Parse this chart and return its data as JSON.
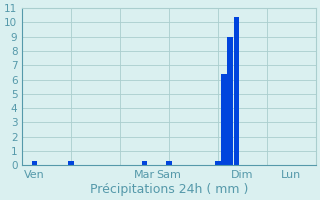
{
  "n_slots": 48,
  "bar_values": [
    0,
    0,
    0.3,
    0,
    0,
    0,
    0,
    0,
    0.3,
    0,
    0,
    0,
    0,
    0,
    0,
    0,
    0,
    0,
    0,
    0,
    0.3,
    0,
    0,
    0,
    0.3,
    0,
    0,
    0,
    0,
    0,
    0,
    0,
    0.3,
    6.4,
    9.0,
    10.4,
    0,
    0,
    0,
    0,
    0,
    0,
    0,
    0,
    0,
    0,
    0,
    0
  ],
  "bar_color": "#0044dd",
  "bar_width": 0.9,
  "xtick_positions": [
    2,
    12,
    20,
    24,
    36,
    44
  ],
  "xtick_labels": [
    "Ven",
    "",
    "Mar",
    "Sam",
    "Dim",
    "Lun"
  ],
  "ylim": [
    0,
    11
  ],
  "ytick_values": [
    0,
    1,
    2,
    3,
    4,
    5,
    6,
    7,
    8,
    9,
    10,
    11
  ],
  "xlabel": "Précipitations 24h ( mm )",
  "background_color": "#daf0f0",
  "grid_color": "#aacece",
  "tick_color": "#5599aa",
  "xlabel_color": "#5599aa",
  "xlabel_fontsize": 9,
  "ytick_fontsize": 7.5,
  "xtick_fontsize": 8,
  "xmin": 0,
  "xmax": 48
}
